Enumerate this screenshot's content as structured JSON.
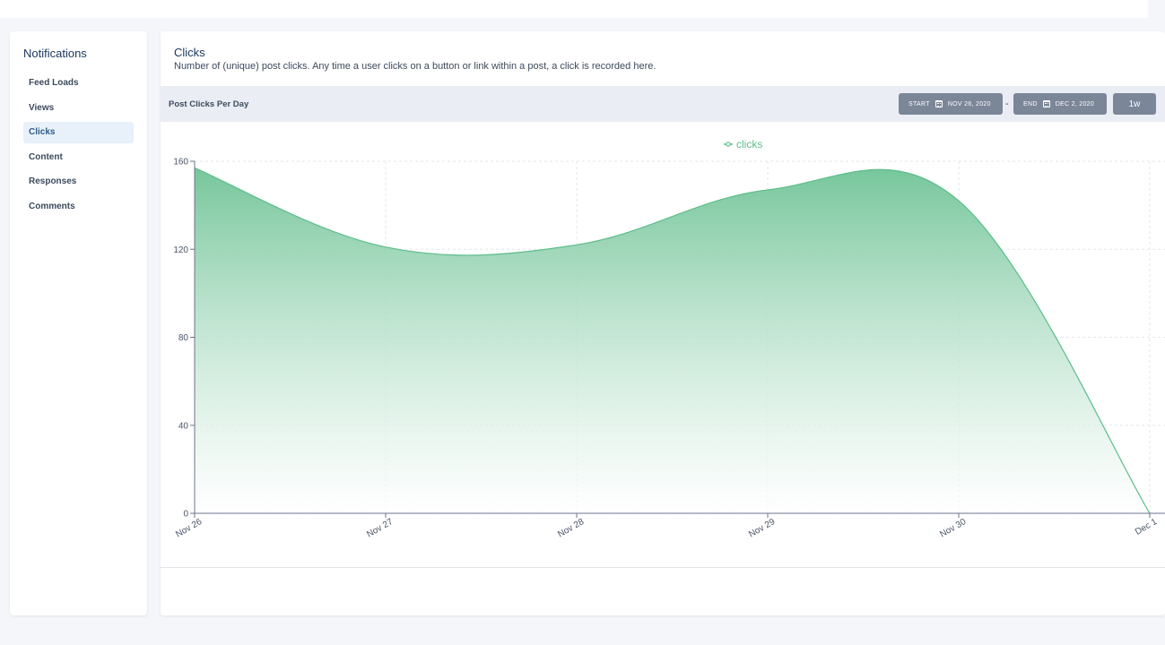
{
  "sidebar": {
    "title": "Notifications",
    "items": [
      {
        "label": "Feed Loads",
        "active": false
      },
      {
        "label": "Views",
        "active": false
      },
      {
        "label": "Clicks",
        "active": true
      },
      {
        "label": "Content",
        "active": false
      },
      {
        "label": "Responses",
        "active": false
      },
      {
        "label": "Comments",
        "active": false
      }
    ]
  },
  "main": {
    "title": "Clicks",
    "description": "Number of (unique) post clicks. Any time a user clicks on a button or link within a post, a click is recorded here."
  },
  "chart_header": {
    "title": "Post Clicks Per Day",
    "start_label": "START",
    "start_value": "NOV 26, 2020",
    "separator": "-",
    "end_label": "END",
    "end_value": "DEC 2, 2020",
    "range_label": "1w"
  },
  "colors": {
    "series": "#5cbd8a",
    "fill_top": "#6fc396",
    "axis": "#6b7489",
    "grid": "#e4e6ee"
  },
  "chart_data": {
    "type": "area",
    "categories": [
      "Nov 26",
      "Nov 27",
      "Nov 28",
      "Nov 29",
      "Nov 30",
      "Dec 1"
    ],
    "series": [
      {
        "name": "clicks",
        "values": [
          157,
          121,
          122,
          147,
          142,
          0
        ]
      }
    ],
    "yticks": [
      0,
      40,
      80,
      120,
      160
    ],
    "ylim": [
      0,
      160
    ],
    "legend": "top-center",
    "grid": true
  }
}
